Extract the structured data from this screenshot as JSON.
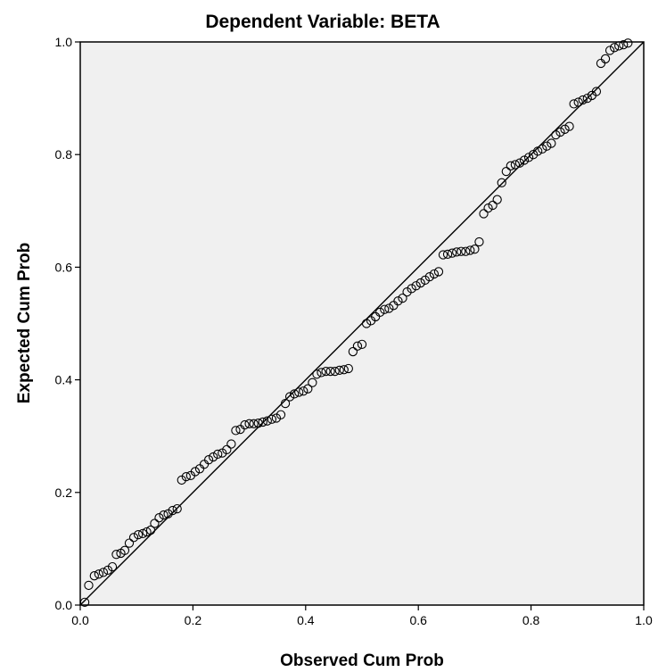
{
  "chart_data": {
    "type": "scatter",
    "title": "Dependent Variable: BETA",
    "xlabel": "Observed Cum Prob",
    "ylabel": "Expected Cum Prob",
    "xlim": [
      0,
      1
    ],
    "ylim": [
      0,
      1
    ],
    "x_ticks": [
      "0.0",
      "0.2",
      "0.4",
      "0.6",
      "0.8",
      "1.0"
    ],
    "y_ticks": [
      "0.0",
      "0.2",
      "0.4",
      "0.6",
      "0.8",
      "1.0"
    ],
    "x_tick_values": [
      0,
      0.2,
      0.4,
      0.6,
      0.8,
      1.0
    ],
    "y_tick_values": [
      0,
      0.2,
      0.4,
      0.6,
      0.8,
      1.0
    ],
    "grid": false,
    "reference_line": {
      "from": [
        0,
        0
      ],
      "to": [
        1,
        1
      ]
    },
    "colors": {
      "plot_background": "#f0f0f0",
      "marker_stroke": "#000000",
      "line": "#000000"
    },
    "points": [
      [
        0.008,
        0.005
      ],
      [
        0.015,
        0.035
      ],
      [
        0.025,
        0.052
      ],
      [
        0.033,
        0.055
      ],
      [
        0.041,
        0.058
      ],
      [
        0.049,
        0.062
      ],
      [
        0.057,
        0.068
      ],
      [
        0.064,
        0.09
      ],
      [
        0.072,
        0.092
      ],
      [
        0.079,
        0.097
      ],
      [
        0.087,
        0.11
      ],
      [
        0.095,
        0.12
      ],
      [
        0.103,
        0.125
      ],
      [
        0.111,
        0.127
      ],
      [
        0.118,
        0.13
      ],
      [
        0.125,
        0.133
      ],
      [
        0.132,
        0.145
      ],
      [
        0.14,
        0.155
      ],
      [
        0.148,
        0.16
      ],
      [
        0.156,
        0.162
      ],
      [
        0.164,
        0.168
      ],
      [
        0.172,
        0.171
      ],
      [
        0.18,
        0.222
      ],
      [
        0.188,
        0.228
      ],
      [
        0.196,
        0.23
      ],
      [
        0.204,
        0.237
      ],
      [
        0.212,
        0.242
      ],
      [
        0.22,
        0.25
      ],
      [
        0.228,
        0.258
      ],
      [
        0.236,
        0.263
      ],
      [
        0.244,
        0.268
      ],
      [
        0.252,
        0.27
      ],
      [
        0.26,
        0.276
      ],
      [
        0.268,
        0.286
      ],
      [
        0.276,
        0.31
      ],
      [
        0.284,
        0.312
      ],
      [
        0.292,
        0.32
      ],
      [
        0.3,
        0.322
      ],
      [
        0.308,
        0.322
      ],
      [
        0.316,
        0.323
      ],
      [
        0.324,
        0.325
      ],
      [
        0.332,
        0.327
      ],
      [
        0.34,
        0.33
      ],
      [
        0.348,
        0.332
      ],
      [
        0.356,
        0.338
      ],
      [
        0.364,
        0.358
      ],
      [
        0.372,
        0.37
      ],
      [
        0.38,
        0.375
      ],
      [
        0.388,
        0.378
      ],
      [
        0.396,
        0.38
      ],
      [
        0.404,
        0.384
      ],
      [
        0.412,
        0.395
      ],
      [
        0.42,
        0.41
      ],
      [
        0.428,
        0.413
      ],
      [
        0.436,
        0.415
      ],
      [
        0.444,
        0.415
      ],
      [
        0.452,
        0.415
      ],
      [
        0.46,
        0.417
      ],
      [
        0.468,
        0.418
      ],
      [
        0.476,
        0.42
      ],
      [
        0.484,
        0.45
      ],
      [
        0.492,
        0.46
      ],
      [
        0.5,
        0.463
      ],
      [
        0.508,
        0.5
      ],
      [
        0.516,
        0.505
      ],
      [
        0.524,
        0.512
      ],
      [
        0.532,
        0.52
      ],
      [
        0.54,
        0.525
      ],
      [
        0.548,
        0.527
      ],
      [
        0.556,
        0.532
      ],
      [
        0.564,
        0.54
      ],
      [
        0.572,
        0.545
      ],
      [
        0.58,
        0.556
      ],
      [
        0.588,
        0.562
      ],
      [
        0.596,
        0.567
      ],
      [
        0.604,
        0.572
      ],
      [
        0.612,
        0.577
      ],
      [
        0.62,
        0.583
      ],
      [
        0.628,
        0.588
      ],
      [
        0.636,
        0.592
      ],
      [
        0.644,
        0.622
      ],
      [
        0.652,
        0.623
      ],
      [
        0.66,
        0.625
      ],
      [
        0.668,
        0.627
      ],
      [
        0.676,
        0.628
      ],
      [
        0.684,
        0.628
      ],
      [
        0.692,
        0.63
      ],
      [
        0.7,
        0.632
      ],
      [
        0.708,
        0.645
      ],
      [
        0.716,
        0.695
      ],
      [
        0.724,
        0.705
      ],
      [
        0.732,
        0.71
      ],
      [
        0.74,
        0.72
      ],
      [
        0.748,
        0.75
      ],
      [
        0.756,
        0.77
      ],
      [
        0.764,
        0.78
      ],
      [
        0.772,
        0.782
      ],
      [
        0.78,
        0.785
      ],
      [
        0.788,
        0.79
      ],
      [
        0.796,
        0.795
      ],
      [
        0.804,
        0.8
      ],
      [
        0.812,
        0.806
      ],
      [
        0.82,
        0.81
      ],
      [
        0.828,
        0.815
      ],
      [
        0.836,
        0.82
      ],
      [
        0.844,
        0.835
      ],
      [
        0.852,
        0.84
      ],
      [
        0.86,
        0.845
      ],
      [
        0.868,
        0.85
      ],
      [
        0.876,
        0.89
      ],
      [
        0.884,
        0.893
      ],
      [
        0.892,
        0.897
      ],
      [
        0.9,
        0.9
      ],
      [
        0.908,
        0.905
      ],
      [
        0.916,
        0.912
      ],
      [
        0.924,
        0.962
      ],
      [
        0.932,
        0.97
      ],
      [
        0.94,
        0.985
      ],
      [
        0.948,
        0.99
      ],
      [
        0.956,
        0.993
      ],
      [
        0.964,
        0.995
      ],
      [
        0.972,
        0.998
      ]
    ]
  }
}
